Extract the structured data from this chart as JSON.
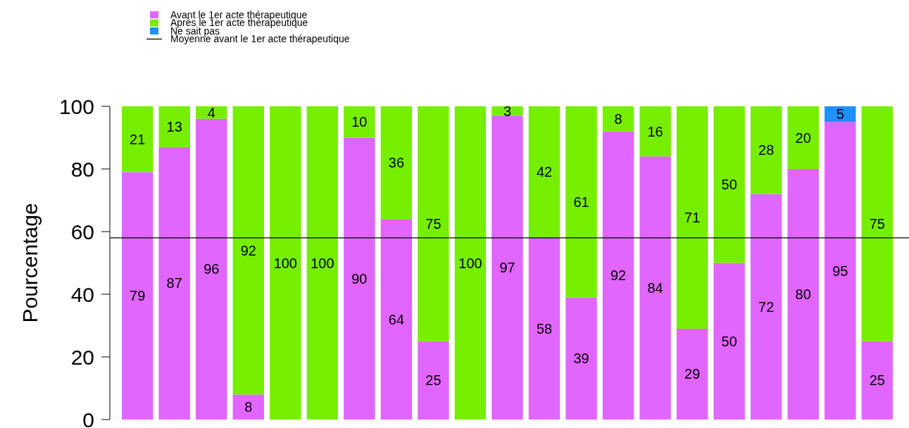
{
  "chart_data": {
    "type": "bar",
    "stacked": true,
    "ylabel": "Pourcentage",
    "categories": [
      null,
      null,
      null,
      null,
      null,
      null,
      null,
      null,
      null,
      null,
      null,
      null,
      null,
      null,
      null,
      null,
      null,
      null,
      null,
      null,
      null
    ],
    "series": [
      {
        "name": "Avant le 1er acte thérapeutique",
        "color": "#e066ff",
        "values": [
          79,
          87,
          96,
          8,
          0,
          0,
          90,
          64,
          25,
          0,
          97,
          58,
          39,
          92,
          84,
          29,
          50,
          72,
          80,
          95,
          25
        ],
        "value_labels": [
          "79",
          "87",
          "96",
          "8",
          null,
          null,
          "90",
          "64",
          "25",
          null,
          "97",
          "58",
          "39",
          "92",
          "84",
          "29",
          "50",
          "72",
          "80",
          "95",
          "25"
        ]
      },
      {
        "name": "Après le 1er acte thérapeutique",
        "color": "#76ee00",
        "values": [
          21,
          13,
          4,
          92,
          100,
          100,
          10,
          36,
          75,
          100,
          3,
          42,
          61,
          8,
          16,
          71,
          50,
          28,
          20,
          0,
          75
        ],
        "value_labels": [
          "21",
          "13",
          "4",
          "92",
          "100",
          "100",
          "10",
          "36",
          "75",
          "100",
          "3",
          "42",
          "61",
          "8",
          "16",
          "71",
          "50",
          "28",
          "20",
          null,
          "75"
        ]
      },
      {
        "name": "Ne sait pas",
        "color": "#1e90ff",
        "values": [
          0,
          0,
          0,
          0,
          0,
          0,
          0,
          0,
          0,
          0,
          0,
          0,
          0,
          0,
          0,
          0,
          0,
          0,
          0,
          5,
          0
        ],
        "value_labels": [
          null,
          null,
          null,
          null,
          null,
          null,
          null,
          null,
          null,
          null,
          null,
          null,
          null,
          null,
          null,
          null,
          null,
          null,
          null,
          "5",
          null
        ]
      }
    ],
    "ref_lines": [
      {
        "axis": "y",
        "value": 58,
        "label": "Moyenne avant le 1er acte thérapeutique",
        "color": "#000000"
      }
    ],
    "ylim": [
      0,
      100
    ],
    "yticks": [
      0,
      20,
      40,
      60,
      80,
      100
    ],
    "legend": "top left",
    "grid": false
  }
}
